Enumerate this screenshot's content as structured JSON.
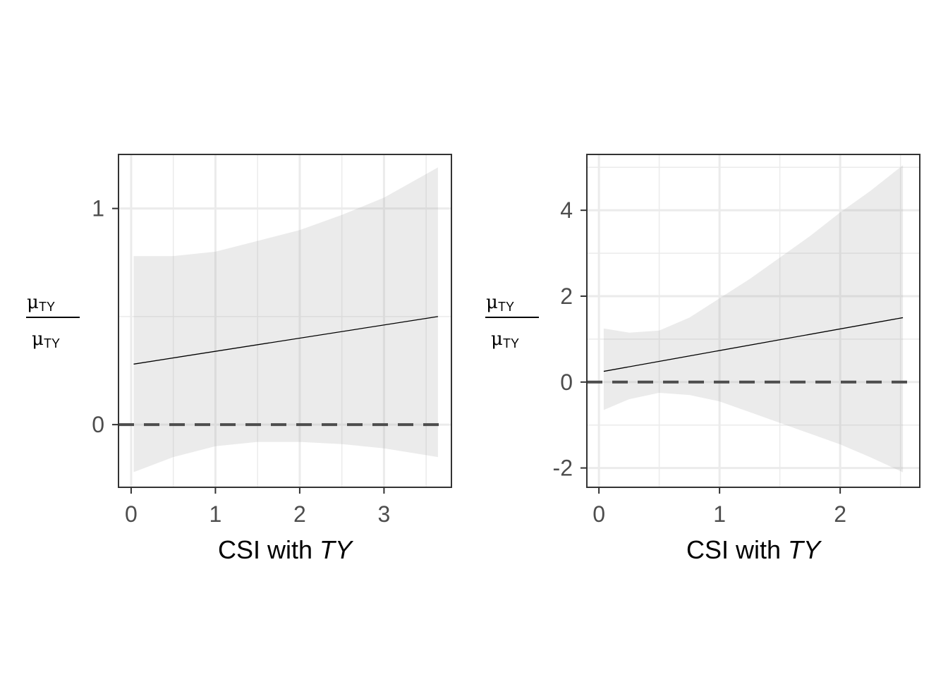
{
  "chart_data": [
    {
      "type": "line",
      "xlabel_prefix": "CSI with ",
      "xlabel_italic": "TY",
      "ylabel": {
        "numerator": "μ",
        "numerator_sub": "TY",
        "denominator": "μ",
        "denominator_sub": "TY"
      },
      "xlim": [
        -0.15,
        3.8
      ],
      "ylim": [
        -0.29,
        1.25
      ],
      "x_ticks": [
        0,
        1,
        2,
        3
      ],
      "x_tick_labels": [
        "0",
        "1",
        "2",
        "3"
      ],
      "y_ticks": [
        0,
        1
      ],
      "y_tick_labels": [
        "0",
        "1"
      ],
      "grid": true,
      "reference_line": {
        "y": 0,
        "style": "dashed"
      },
      "fit": {
        "x": [
          0.03,
          3.64
        ],
        "y": [
          0.28,
          0.5
        ]
      },
      "ribbon": {
        "x": [
          0.03,
          0.5,
          1.0,
          1.5,
          2.0,
          2.5,
          3.0,
          3.64
        ],
        "lower": [
          -0.22,
          -0.15,
          -0.1,
          -0.08,
          -0.08,
          -0.09,
          -0.11,
          -0.15
        ],
        "upper": [
          0.78,
          0.78,
          0.8,
          0.85,
          0.9,
          0.97,
          1.05,
          1.19
        ]
      }
    },
    {
      "type": "line",
      "xlabel_prefix": "CSI with ",
      "xlabel_italic": "TY",
      "ylabel": {
        "numerator": "μ",
        "numerator_sub": "TY",
        "denominator": "μ",
        "denominator_sub": "TY"
      },
      "xlim": [
        -0.1,
        2.66
      ],
      "ylim": [
        -2.45,
        5.3
      ],
      "x_ticks": [
        0,
        1,
        2
      ],
      "x_tick_labels": [
        "0",
        "1",
        "2"
      ],
      "y_ticks": [
        -2,
        0,
        2,
        4
      ],
      "y_tick_labels": [
        "-2",
        "0",
        "2",
        "4"
      ],
      "grid": true,
      "reference_line": {
        "y": 0,
        "style": "dashed"
      },
      "fit": {
        "x": [
          0.04,
          2.52
        ],
        "y": [
          0.25,
          1.5
        ]
      },
      "ribbon": {
        "x": [
          0.04,
          0.25,
          0.5,
          0.75,
          1.0,
          1.25,
          1.5,
          1.75,
          2.0,
          2.25,
          2.52
        ],
        "lower": [
          -0.65,
          -0.4,
          -0.25,
          -0.3,
          -0.45,
          -0.7,
          -0.95,
          -1.2,
          -1.45,
          -1.75,
          -2.1
        ],
        "upper": [
          1.25,
          1.15,
          1.2,
          1.5,
          1.95,
          2.4,
          2.9,
          3.4,
          3.95,
          4.45,
          5.05
        ]
      }
    }
  ]
}
